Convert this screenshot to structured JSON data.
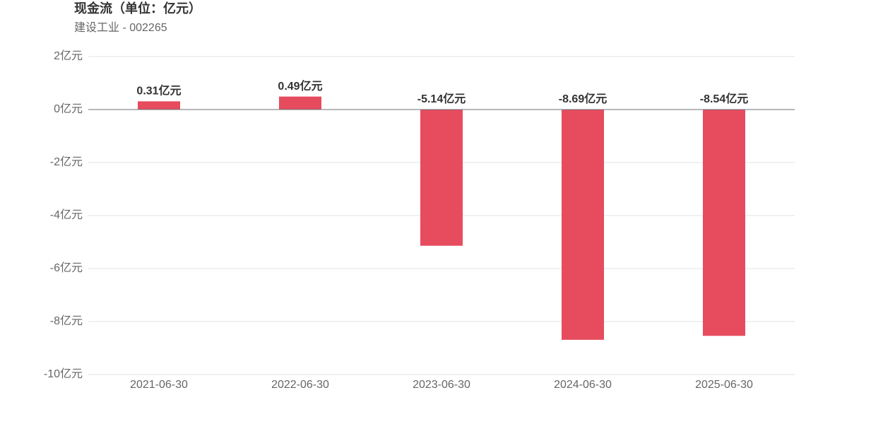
{
  "chart_data": {
    "type": "bar",
    "title": "现金流（单位：亿元）",
    "subtitle": "建设工业 - 002265",
    "categories": [
      "2021-06-30",
      "2022-06-30",
      "2023-06-30",
      "2024-06-30",
      "2025-06-30"
    ],
    "values": [
      0.31,
      0.49,
      -5.14,
      -8.69,
      -8.54
    ],
    "value_labels": [
      "0.31亿元",
      "0.49亿元",
      "-5.14亿元",
      "-8.69亿元",
      "-8.54亿元"
    ],
    "color": "#e64c5e",
    "ylim": [
      -10,
      2
    ],
    "yticks": [
      {
        "value": 2,
        "label": "2亿元"
      },
      {
        "value": 0,
        "label": "0亿元"
      },
      {
        "value": -2,
        "label": "-2亿元"
      },
      {
        "value": -4,
        "label": "-4亿元"
      },
      {
        "value": -6,
        "label": "-6亿元"
      },
      {
        "value": -8,
        "label": "-8亿元"
      },
      {
        "value": -10,
        "label": "-10亿元"
      }
    ],
    "grid": true
  }
}
